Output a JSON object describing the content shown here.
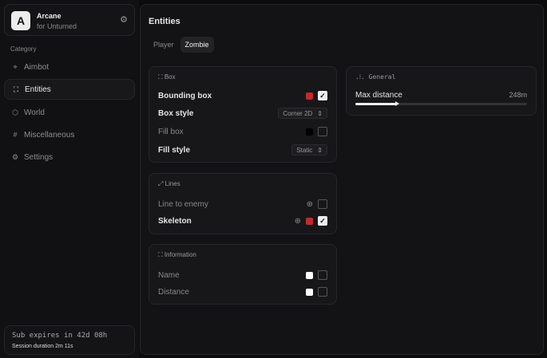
{
  "brand": {
    "logo": "A",
    "name": "Arcane",
    "subtitle": "for Unturned"
  },
  "sidebar": {
    "category": "Category",
    "items": [
      {
        "label": "Aimbot",
        "icon": "crosshair-icon"
      },
      {
        "label": "Entities",
        "icon": "scan-icon",
        "active": true
      },
      {
        "label": "World",
        "icon": "cube-icon"
      },
      {
        "label": "Miscellaneous",
        "icon": "grid-icon"
      },
      {
        "label": "Settings",
        "icon": "gear-icon"
      }
    ]
  },
  "subscription": {
    "expires": "Sub expires in 42d 08h",
    "session": "Session duration 2m 11s"
  },
  "main": {
    "title": "Entities",
    "tabs": [
      {
        "label": "Player"
      },
      {
        "label": "Zombie",
        "active": true
      }
    ]
  },
  "box": {
    "title": "Box",
    "bounding_box": "Bounding box",
    "bounding_color": "#c62828",
    "bounding_checked": true,
    "box_style": "Box style",
    "box_style_value": "Corner 2D",
    "fill_box": "Fill box",
    "fill_color": "#000000",
    "fill_checked": false,
    "fill_style": "Fill style",
    "fill_style_value": "Static"
  },
  "lines": {
    "title": "Lines",
    "line_to_enemy": "Line to enemy",
    "line_checked": false,
    "skeleton": "Skeleton",
    "skeleton_color": "#c62828",
    "skeleton_checked": true
  },
  "information": {
    "title": "Information",
    "name": "Name",
    "name_checked": false,
    "distance": "Distance",
    "distance_checked": false
  },
  "general": {
    "title": "General",
    "max_distance": "Max distance",
    "max_distance_value": "248m",
    "slider_fraction": 0.24
  }
}
